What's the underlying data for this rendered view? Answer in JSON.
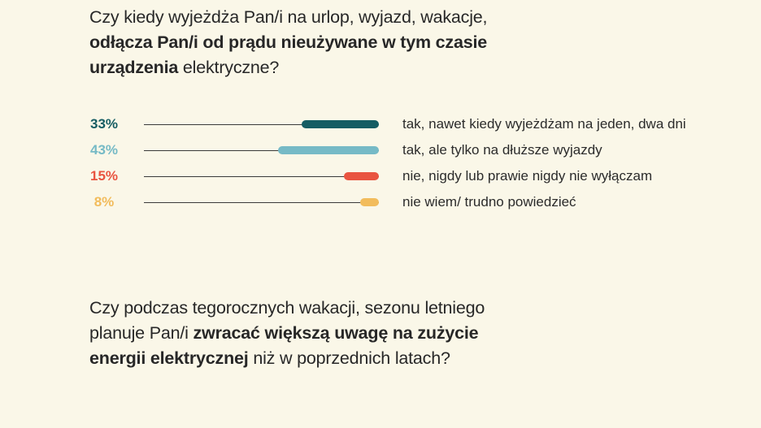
{
  "page": {
    "background": "#FAF7E8",
    "text_color": "#272727",
    "line_color": "#3A3A3A"
  },
  "question_top": {
    "full_text": "Czy kiedy wyjeżdża Pan/i na urlop, wyjazd, wakacje, odłącza Pan/i od prądu nieużywane w tym czasie urządzenia elektryczne?",
    "lines": [
      {
        "parts": [
          {
            "text": "Czy kiedy wyjeżdża Pan/i na urlop, wyjazd, wakacje,",
            "bold": false
          }
        ]
      },
      {
        "parts": [
          {
            "text": "odłącza Pan/i od prądu nieużywane w tym czasie",
            "bold": true
          }
        ]
      },
      {
        "parts": [
          {
            "text": "urządzenia",
            "bold": true
          },
          {
            "text": " elektryczne?",
            "bold": false
          }
        ]
      }
    ]
  },
  "chart": {
    "rows": [
      {
        "percent": "33%",
        "value": 33,
        "color": "#155D63",
        "label": "tak, nawet kiedy wyjeżdżam na jeden, dwa dni"
      },
      {
        "percent": "43%",
        "value": 43,
        "color": "#76BAC6",
        "label": "tak, ale tylko na dłuższe wyjazdy"
      },
      {
        "percent": "15%",
        "value": 15,
        "color": "#E95440",
        "label": "nie, nigdy lub prawie nigdy nie wyłączam"
      },
      {
        "percent": "8%",
        "value": 8,
        "color": "#F2BC5C",
        "label": "nie wiem/ trudno powiedzieć"
      }
    ]
  },
  "question_bottom": {
    "full_text": "Czy podczas tegorocznych wakacji, sezonu letniego planuje Pan/i zwracać większą uwagę na zużycie energii elektrycznej niż w poprzednich latach?",
    "lines": [
      {
        "parts": [
          {
            "text": "Czy podczas tegorocznych wakacji, sezonu letniego",
            "bold": false
          }
        ]
      },
      {
        "parts": [
          {
            "text": "planuje Pan/i ",
            "bold": false
          },
          {
            "text": "zwracać większą uwagę na zużycie",
            "bold": true
          }
        ]
      },
      {
        "parts": [
          {
            "text": "energii elektrycznej",
            "bold": true
          },
          {
            "text": " niż w poprzednich latach?",
            "bold": false
          }
        ]
      }
    ]
  },
  "chart_data": {
    "type": "bar",
    "orientation": "horizontal",
    "title": "Czy kiedy wyjeżdża Pan/i na urlop, wyjazd, wakacje, odłącza Pan/i od prądu nieużywane w tym czasie urządzenia elektryczne?",
    "categories": [
      "tak, nawet kiedy wyjeżdżam na jeden, dwa dni",
      "tak, ale tylko na dłuższe wyjazdy",
      "nie, nigdy lub prawie nigdy nie wyłączam",
      "nie wiem/ trudno powiedzieć"
    ],
    "values": [
      33,
      43,
      15,
      8
    ],
    "value_labels": [
      "33%",
      "43%",
      "15%",
      "8%"
    ],
    "unit": "%",
    "colors": [
      "#155D63",
      "#76BAC6",
      "#E95440",
      "#F2BC5C"
    ],
    "xlim": [
      0,
      100
    ],
    "legend": false,
    "grid": false
  }
}
